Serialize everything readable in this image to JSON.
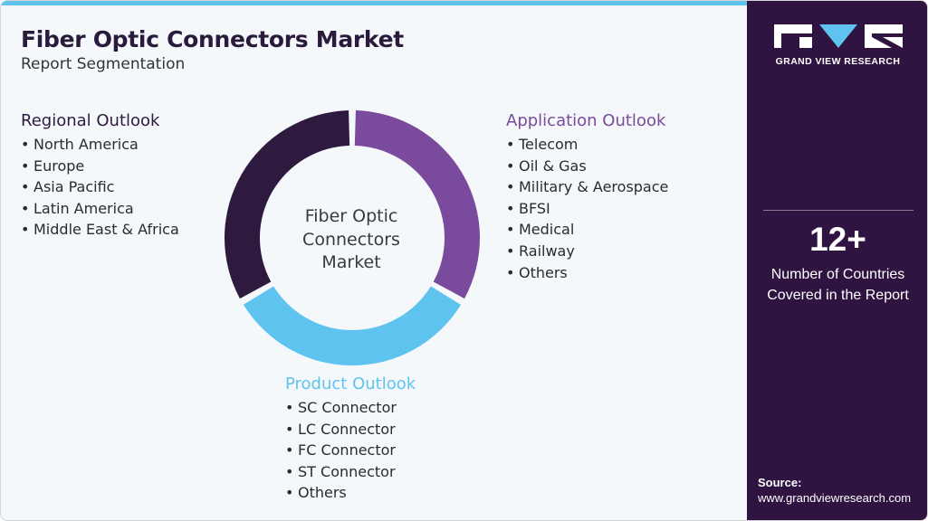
{
  "header": {
    "title": "Fiber Optic Connectors Market",
    "subtitle": "Report Segmentation"
  },
  "colors": {
    "accent_stripe": "#5fc3ef",
    "regional": "#2e1a3f",
    "application": "#7a4a9c",
    "product": "#5fc3ef",
    "sidebar": "#2f1340"
  },
  "diagram": {
    "center_label_lines": [
      "Fiber Optic",
      "Connectors",
      "Market"
    ],
    "segments": [
      {
        "key": "application",
        "title": "Application Outlook",
        "color": "#7a4a9c",
        "share": 0.3333,
        "items": [
          "Telecom",
          "Oil & Gas",
          "Military & Aerospace",
          "BFSI",
          "Medical",
          "Railway",
          "Others"
        ]
      },
      {
        "key": "product",
        "title": "Product Outlook",
        "color": "#5fc3ef",
        "share": 0.3333,
        "items": [
          "SC Connector",
          "LC Connector",
          "FC Connector",
          "ST Connector",
          "Others"
        ]
      },
      {
        "key": "regional",
        "title": "Regional Outlook",
        "color": "#2e1a3f",
        "share": 0.3333,
        "items": [
          "North America",
          "Europe",
          "Asia Pacific",
          "Latin America",
          "Middle East & Africa"
        ]
      }
    ]
  },
  "sidebar": {
    "logo_icon": "gvr-logo-icon",
    "logo_text": "GRAND VIEW RESEARCH",
    "stat_number": "12+",
    "stat_caption_lines": [
      "Number of Countries",
      "Covered in the Report"
    ],
    "source_label": "Source:",
    "source_url": "www.grandviewresearch.com"
  }
}
